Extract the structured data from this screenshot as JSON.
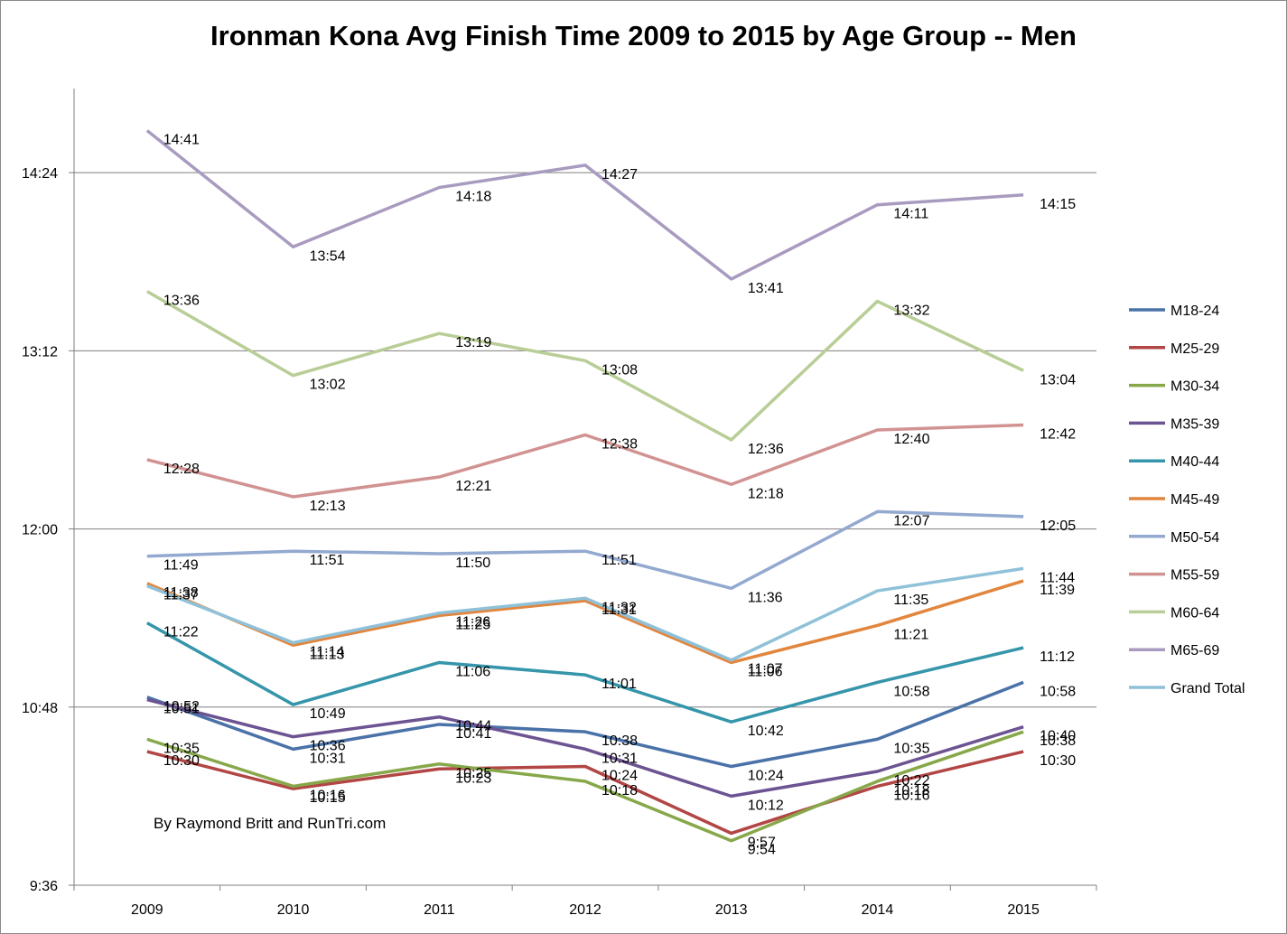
{
  "chart_data": {
    "type": "line",
    "title": "Ironman Kona Avg Finish Time 2009 to 2015 by Age Group -- Men",
    "xlabel": "",
    "ylabel": "",
    "categories": [
      "2009",
      "2010",
      "2011",
      "2012",
      "2013",
      "2014",
      "2015"
    ],
    "y_ticks": [
      "9:36",
      "10:48",
      "12:00",
      "13:12",
      "14:24"
    ],
    "y_tick_minutes": [
      576,
      648,
      720,
      792,
      864
    ],
    "ylim_minutes": [
      576,
      898
    ],
    "legend_position": "right",
    "grid": true,
    "credit": "By Raymond Britt and RunTri.com",
    "series": [
      {
        "name": "M18-24",
        "color": "#4a72a8",
        "values": [
          "10:52",
          "10:31",
          "10:41",
          "10:38",
          "10:24",
          "10:35",
          "10:58"
        ]
      },
      {
        "name": "M25-29",
        "color": "#b24645",
        "values": [
          "10:30",
          "10:15",
          "10:23",
          "10:24",
          "9:57",
          "10:16",
          "10:30"
        ]
      },
      {
        "name": "M30-34",
        "color": "#87a84a",
        "values": [
          "10:35",
          "10:16",
          "10:25",
          "10:18",
          "9:54",
          "10:18",
          "10:38"
        ]
      },
      {
        "name": "M35-39",
        "color": "#6c5392",
        "values": [
          "10:51",
          "10:36",
          "10:44",
          "10:31",
          "10:12",
          "10:22",
          "10:40"
        ]
      },
      {
        "name": "M40-44",
        "color": "#3595aa",
        "values": [
          "11:22",
          "10:49",
          "11:06",
          "11:01",
          "10:42",
          "10:58",
          "11:12"
        ]
      },
      {
        "name": "M45-49",
        "color": "#e2863e",
        "values": [
          "11:38",
          "11:13",
          "11:25",
          "11:31",
          "11:06",
          "11:21",
          "11:39"
        ]
      },
      {
        "name": "M50-54",
        "color": "#93a9cf",
        "values": [
          "11:49",
          "11:51",
          "11:50",
          "11:51",
          "11:36",
          "12:07",
          "12:05"
        ]
      },
      {
        "name": "M55-59",
        "color": "#d19392",
        "values": [
          "12:28",
          "12:13",
          "12:21",
          "12:38",
          "12:18",
          "12:40",
          "12:42"
        ]
      },
      {
        "name": "M60-64",
        "color": "#b9cd96",
        "values": [
          "13:36",
          "13:02",
          "13:19",
          "13:08",
          "12:36",
          "13:32",
          "13:04"
        ]
      },
      {
        "name": "M65-69",
        "color": "#a89bbf",
        "values": [
          "14:41",
          "13:54",
          "14:18",
          "14:27",
          "13:41",
          "14:11",
          "14:15"
        ]
      },
      {
        "name": "Grand Total",
        "color": "#8fc1d9",
        "values": [
          "11:37",
          "11:14",
          "11:26",
          "11:32",
          "11:07",
          "11:35",
          "11:44"
        ]
      }
    ]
  }
}
